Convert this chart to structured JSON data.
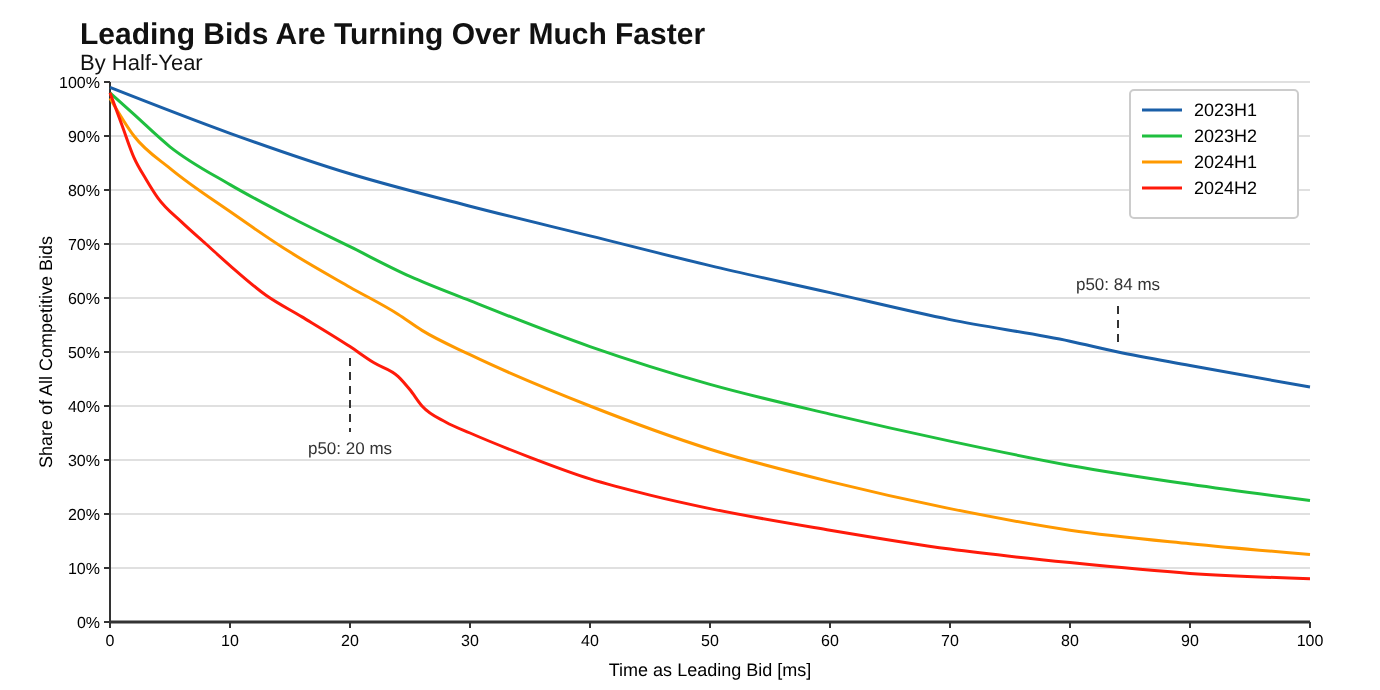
{
  "chart_data": {
    "type": "line",
    "title": "Leading Bids Are Turning Over Much Faster",
    "subtitle": "By Half-Year",
    "xlabel": "Time as Leading Bid [ms]",
    "ylabel": "Share of All Competitive Bids",
    "xlim": [
      0,
      100
    ],
    "xticks": [
      0,
      10,
      20,
      30,
      40,
      50,
      60,
      70,
      80,
      90,
      100
    ],
    "ylim": [
      0,
      100
    ],
    "yticks": [
      {
        "value": 0,
        "label": "0%"
      },
      {
        "value": 10,
        "label": "10%"
      },
      {
        "value": 20,
        "label": "20%"
      },
      {
        "value": 30,
        "label": "30%"
      },
      {
        "value": 40,
        "label": "40%"
      },
      {
        "value": 50,
        "label": "50%"
      },
      {
        "value": 60,
        "label": "60%"
      },
      {
        "value": 70,
        "label": "70%"
      },
      {
        "value": 80,
        "label": "80%"
      },
      {
        "value": 90,
        "label": "90%"
      },
      {
        "value": 100,
        "label": "100%"
      }
    ],
    "grid": "y",
    "legend": "top right",
    "line_style": "solid",
    "marker": "none",
    "annotations": [
      {
        "text": "p50: 20 ms",
        "x": 20,
        "y": 50
      },
      {
        "text": "p50: 84 ms",
        "x": 84,
        "y": 50
      }
    ],
    "series": [
      {
        "name": "2023H1",
        "color": "#1a5fa8",
        "x": [
          0,
          10,
          20,
          30,
          40,
          50,
          60,
          70,
          80,
          84,
          90,
          100
        ],
        "values": [
          99,
          90.5,
          83,
          77,
          71.5,
          66,
          61,
          56,
          52,
          50,
          47.5,
          43.5
        ]
      },
      {
        "name": "2023H2",
        "color": "#1fbf3f",
        "x": [
          0,
          2,
          5,
          10,
          15,
          20,
          25,
          30,
          40,
          50,
          60,
          70,
          80,
          90,
          100
        ],
        "values": [
          98,
          94,
          88,
          81,
          75,
          69.5,
          64,
          59.5,
          51,
          44,
          38.5,
          33.5,
          29,
          25.5,
          22.5
        ]
      },
      {
        "name": "2024H1",
        "color": "#ff9900",
        "x": [
          0,
          2,
          5,
          10,
          15,
          20,
          24,
          26,
          30,
          40,
          50,
          60,
          70,
          80,
          90,
          100
        ],
        "values": [
          97,
          90,
          84,
          76,
          68.5,
          62,
          57,
          54,
          49.5,
          40,
          32,
          26,
          21,
          17,
          14.5,
          12.5
        ]
      },
      {
        "name": "2024H2",
        "color": "#ff1a0a",
        "x": [
          0,
          1,
          2,
          3,
          4,
          6,
          8,
          10,
          13,
          16,
          20,
          22,
          24,
          25,
          26,
          28,
          30,
          35,
          40,
          45,
          50,
          60,
          70,
          80,
          90,
          100
        ],
        "values": [
          98,
          92,
          86,
          82,
          78.5,
          74,
          70,
          66,
          60.5,
          56.5,
          51,
          48,
          45.5,
          43,
          40,
          37,
          35,
          30.5,
          26.5,
          23.5,
          21,
          17,
          13.5,
          11,
          9,
          8
        ]
      }
    ]
  }
}
